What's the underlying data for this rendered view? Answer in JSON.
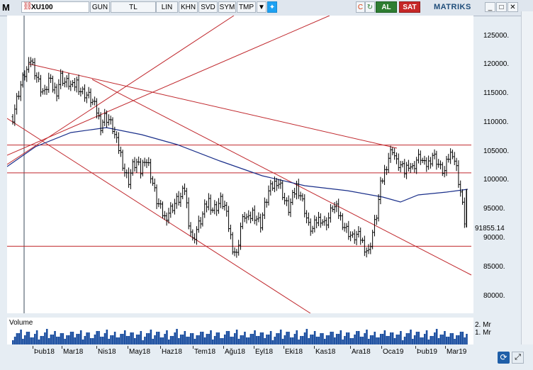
{
  "toolbar": {
    "logo": "M",
    "symbol": "XU100",
    "buttons": [
      "GUN",
      "TL",
      "LIN",
      "KHN",
      "SVD",
      "SYM",
      "TMP"
    ],
    "buy_label": "AL",
    "sell_label": "SAT",
    "brand": "MATRIKS",
    "colors": {
      "buy": "#2e7d32",
      "sell": "#c62828"
    }
  },
  "chart_data": {
    "type": "candlestick",
    "symbol": "XU100",
    "last_price_label": "91855.14",
    "y_ticks": [
      "125000.",
      "120000.",
      "115000.",
      "110000.",
      "105000.",
      "100000.",
      "95000.",
      "90000.",
      "85000.",
      "80000."
    ],
    "y_values": [
      125000,
      120000,
      115000,
      110000,
      105000,
      100000,
      95000,
      90000,
      85000,
      80000
    ],
    "x_ticks": [
      "Þub18",
      "Mar18",
      "Nis18",
      "May18",
      "Haz18",
      "Tem18",
      "Ağu18",
      "Eyl18",
      "Eki18",
      "Kas18",
      "Ara18",
      "Oca19",
      "Þub19",
      "Mar19"
    ],
    "ylim": [
      77000,
      128500
    ],
    "horizontal_levels": [
      106100,
      101300,
      88600
    ],
    "series": [
      {
        "points": [
          [
            0,
            111000
          ],
          [
            2,
            114000
          ],
          [
            4,
            116500
          ],
          [
            6,
            118500
          ],
          [
            8,
            119500
          ],
          [
            9,
            121000
          ],
          [
            10,
            120000
          ],
          [
            12,
            118000
          ],
          [
            14,
            116000
          ],
          [
            16,
            115000
          ],
          [
            18,
            117500
          ],
          [
            20,
            116000
          ],
          [
            22,
            115500
          ],
          [
            24,
            118000
          ],
          [
            26,
            117000
          ],
          [
            28,
            116800
          ],
          [
            30,
            116000
          ],
          [
            32,
            117000
          ],
          [
            34,
            115500
          ],
          [
            36,
            115000
          ],
          [
            38,
            114500
          ],
          [
            40,
            113500
          ],
          [
            42,
            112000
          ],
          [
            44,
            109500
          ],
          [
            46,
            111000
          ],
          [
            48,
            110500
          ],
          [
            50,
            109000
          ],
          [
            52,
            106500
          ],
          [
            54,
            104500
          ],
          [
            56,
            101500
          ],
          [
            58,
            100000
          ],
          [
            60,
            102500
          ],
          [
            62,
            103000
          ],
          [
            64,
            101500
          ],
          [
            66,
            104000
          ],
          [
            68,
            102500
          ],
          [
            70,
            99500
          ],
          [
            72,
            96500
          ],
          [
            74,
            95000
          ],
          [
            76,
            93500
          ],
          [
            78,
            94500
          ],
          [
            80,
            95500
          ],
          [
            82,
            96500
          ],
          [
            84,
            97000
          ],
          [
            86,
            98500
          ],
          [
            88,
            93000
          ],
          [
            90,
            89500
          ],
          [
            92,
            91500
          ],
          [
            94,
            93000
          ],
          [
            96,
            95000
          ],
          [
            98,
            96500
          ],
          [
            100,
            95000
          ],
          [
            102,
            95500
          ],
          [
            104,
            96500
          ],
          [
            106,
            95500
          ],
          [
            108,
            92000
          ],
          [
            110,
            88500
          ],
          [
            112,
            87000
          ],
          [
            114,
            92000
          ],
          [
            116,
            94000
          ],
          [
            118,
            93000
          ],
          [
            120,
            94500
          ],
          [
            122,
            93500
          ],
          [
            124,
            92500
          ],
          [
            126,
            95500
          ],
          [
            128,
            98000
          ],
          [
            130,
            99000
          ],
          [
            132,
            100000
          ],
          [
            134,
            99000
          ],
          [
            136,
            96500
          ],
          [
            138,
            95000
          ],
          [
            140,
            97000
          ],
          [
            142,
            99000
          ],
          [
            144,
            97500
          ],
          [
            146,
            95000
          ],
          [
            148,
            92000
          ],
          [
            150,
            91500
          ],
          [
            152,
            93000
          ],
          [
            154,
            93500
          ],
          [
            156,
            92500
          ],
          [
            158,
            93500
          ],
          [
            160,
            95500
          ],
          [
            162,
            95000
          ],
          [
            164,
            93500
          ],
          [
            166,
            92000
          ],
          [
            168,
            91000
          ],
          [
            170,
            90000
          ],
          [
            172,
            90500
          ],
          [
            174,
            90000
          ],
          [
            176,
            88500
          ],
          [
            178,
            87500
          ],
          [
            180,
            91000
          ],
          [
            182,
            94000
          ],
          [
            184,
            99000
          ],
          [
            186,
            101500
          ],
          [
            188,
            104000
          ],
          [
            190,
            105500
          ],
          [
            192,
            103000
          ],
          [
            194,
            102500
          ],
          [
            196,
            101500
          ],
          [
            198,
            103000
          ],
          [
            200,
            102000
          ],
          [
            202,
            103500
          ],
          [
            204,
            104000
          ],
          [
            206,
            102500
          ],
          [
            208,
            103000
          ],
          [
            210,
            104500
          ],
          [
            212,
            103500
          ],
          [
            214,
            102000
          ],
          [
            216,
            101500
          ],
          [
            218,
            104000
          ],
          [
            220,
            105000
          ],
          [
            222,
            102000
          ],
          [
            224,
            98000
          ],
          [
            226,
            93000
          ],
          [
            227,
            91855
          ]
        ]
      }
    ]
  },
  "volume": {
    "title": "Volume",
    "ticks": [
      "2. Mr",
      "1. Mr"
    ]
  }
}
